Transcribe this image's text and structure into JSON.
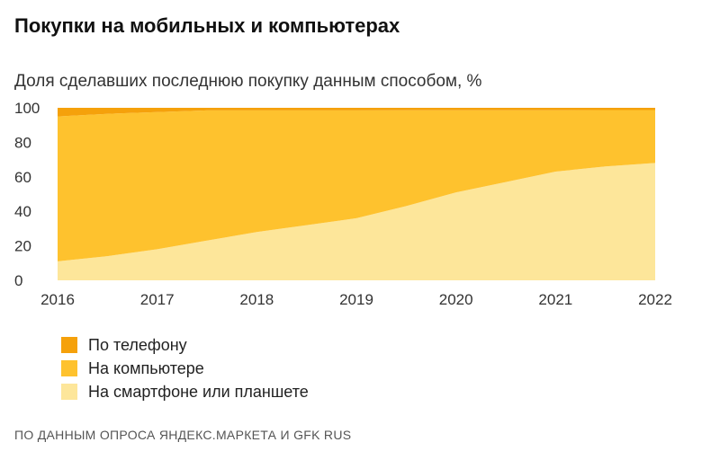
{
  "title": "Покупки на мобильных и компьютерах",
  "subtitle": "Доля сделавших последнюю покупку данным способом, %",
  "source": "ПО ДАННЫМ ОПРОСА ЯНДЕКС.МАРКЕТА И GFK RUS",
  "chart_data": {
    "type": "area",
    "stacked": true,
    "x": [
      2016,
      2016.5,
      2017,
      2017.5,
      2018,
      2018.5,
      2019,
      2019.5,
      2020,
      2020.5,
      2021,
      2021.5,
      2022
    ],
    "x_ticks": [
      "2016",
      "2017",
      "2018",
      "2019",
      "2020",
      "2021",
      "2022"
    ],
    "y_ticks": [
      "0",
      "20",
      "40",
      "60",
      "80",
      "100"
    ],
    "ylim": [
      0,
      100
    ],
    "series": [
      {
        "name": "На смартфоне или планшете",
        "color": "#fde69a",
        "values": [
          11,
          14,
          18,
          23,
          28,
          32,
          36,
          43,
          51,
          57,
          63,
          66,
          68
        ]
      },
      {
        "name": "На компьютере",
        "color": "#fec22e",
        "values": [
          84,
          82.5,
          79.5,
          75.5,
          70.5,
          66.5,
          62.5,
          55.6,
          47.6,
          41.6,
          35.6,
          32.7,
          30.7
        ]
      },
      {
        "name": "По телефону",
        "color": "#f5a10b",
        "values": [
          5,
          3.5,
          2.5,
          1.5,
          1.5,
          1.5,
          1.5,
          1.4,
          1.4,
          1.4,
          1.4,
          1.3,
          1.3
        ]
      }
    ],
    "legend_order": [
      "По телефону",
      "На компьютере",
      "На смартфоне или планшете"
    ],
    "legend_position": "bottom-left",
    "grid": false
  }
}
